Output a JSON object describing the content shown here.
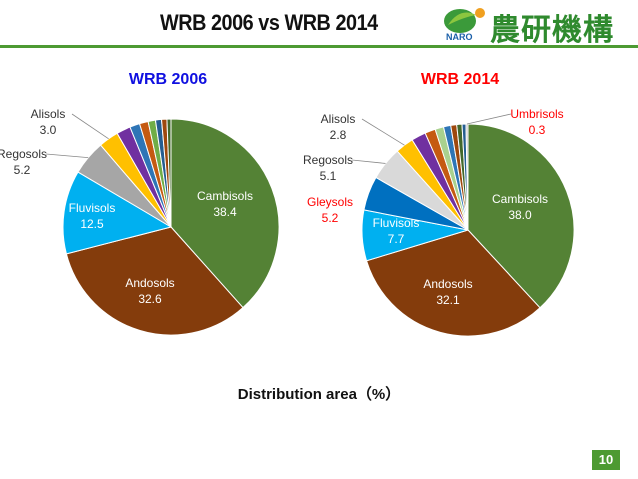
{
  "slide": {
    "title": "WRB 2006 vs WRB 2014",
    "logo_text": "農研機構",
    "logo_sub": "NARO",
    "page_number": "10"
  },
  "chart_data": [
    {
      "type": "pie",
      "title": "WRB 2006",
      "title_color": "#1010e0",
      "slices": [
        {
          "name": "Cambisols",
          "value": 38.4,
          "color": "#548235",
          "label": [
            "Cambisols",
            "38.4"
          ],
          "label_color": "#ffffff"
        },
        {
          "name": "Andosols",
          "value": 32.6,
          "color": "#843c0c",
          "label": [
            "Andosols",
            "32.6"
          ],
          "label_color": "#ffffff"
        },
        {
          "name": "Fluvisols",
          "value": 12.5,
          "color": "#00b0f0",
          "label": [
            "Fluvisols",
            "12.5"
          ],
          "label_color": "#ffffff"
        },
        {
          "name": "Regosols",
          "value": 5.2,
          "color": "#a6a6a6",
          "label": [
            "Regosols",
            "5.2"
          ],
          "label_color": "#333333",
          "leader": true
        },
        {
          "name": "Alisols",
          "value": 3.0,
          "color": "#ffc000",
          "label": [
            "Alisols",
            "3.0"
          ],
          "label_color": "#333333",
          "leader": true
        },
        {
          "name": "",
          "value": 2.1,
          "color": "#7030a0"
        },
        {
          "name": "",
          "value": 1.5,
          "color": "#2e75b6"
        },
        {
          "name": "",
          "value": 1.3,
          "color": "#c55a11"
        },
        {
          "name": "",
          "value": 1.1,
          "color": "#70ad47"
        },
        {
          "name": "",
          "value": 0.9,
          "color": "#255e91"
        },
        {
          "name": "",
          "value": 0.8,
          "color": "#9e480e"
        },
        {
          "name": "",
          "value": 0.6,
          "color": "#43682b"
        }
      ]
    },
    {
      "type": "pie",
      "title": "WRB 2014",
      "title_color": "#ff0000",
      "slices": [
        {
          "name": "Cambisols",
          "value": 38.0,
          "color": "#548235",
          "label": [
            "Cambisols",
            "38.0"
          ],
          "label_color": "#ffffff"
        },
        {
          "name": "Andosols",
          "value": 32.1,
          "color": "#843c0c",
          "label": [
            "Andosols",
            "32.1"
          ],
          "label_color": "#ffffff"
        },
        {
          "name": "Fluvisols",
          "value": 7.7,
          "color": "#00b0f0",
          "label": [
            "Fluvisols",
            "7.7"
          ],
          "label_color": "#ffffff"
        },
        {
          "name": "Gleysols",
          "value": 5.2,
          "color": "#0070c0",
          "label": [
            "Gleysols",
            "5.2"
          ],
          "label_color": "#ff0000"
        },
        {
          "name": "Regosols",
          "value": 5.1,
          "color": "#d9d9d9",
          "label": [
            "Regosols",
            "5.1"
          ],
          "label_color": "#333333",
          "leader": true
        },
        {
          "name": "Alisols",
          "value": 2.8,
          "color": "#ffc000",
          "label": [
            "Alisols",
            "2.8"
          ],
          "label_color": "#333333",
          "leader": true
        },
        {
          "name": "",
          "value": 2.2,
          "color": "#7030a0"
        },
        {
          "name": "",
          "value": 1.6,
          "color": "#c55a11"
        },
        {
          "name": "",
          "value": 1.3,
          "color": "#a9d18e"
        },
        {
          "name": "",
          "value": 1.1,
          "color": "#2e75b6"
        },
        {
          "name": "",
          "value": 0.9,
          "color": "#9e480e"
        },
        {
          "name": "",
          "value": 0.8,
          "color": "#43682b"
        },
        {
          "name": "",
          "value": 0.6,
          "color": "#255e91"
        },
        {
          "name": "Umbrisols",
          "value": 0.3,
          "color": "#bfbfbf",
          "label": [
            "Umbrisols",
            "0.3"
          ],
          "label_color": "#ff0000",
          "leader": true
        }
      ]
    }
  ],
  "caption": "Distribution area（%）"
}
